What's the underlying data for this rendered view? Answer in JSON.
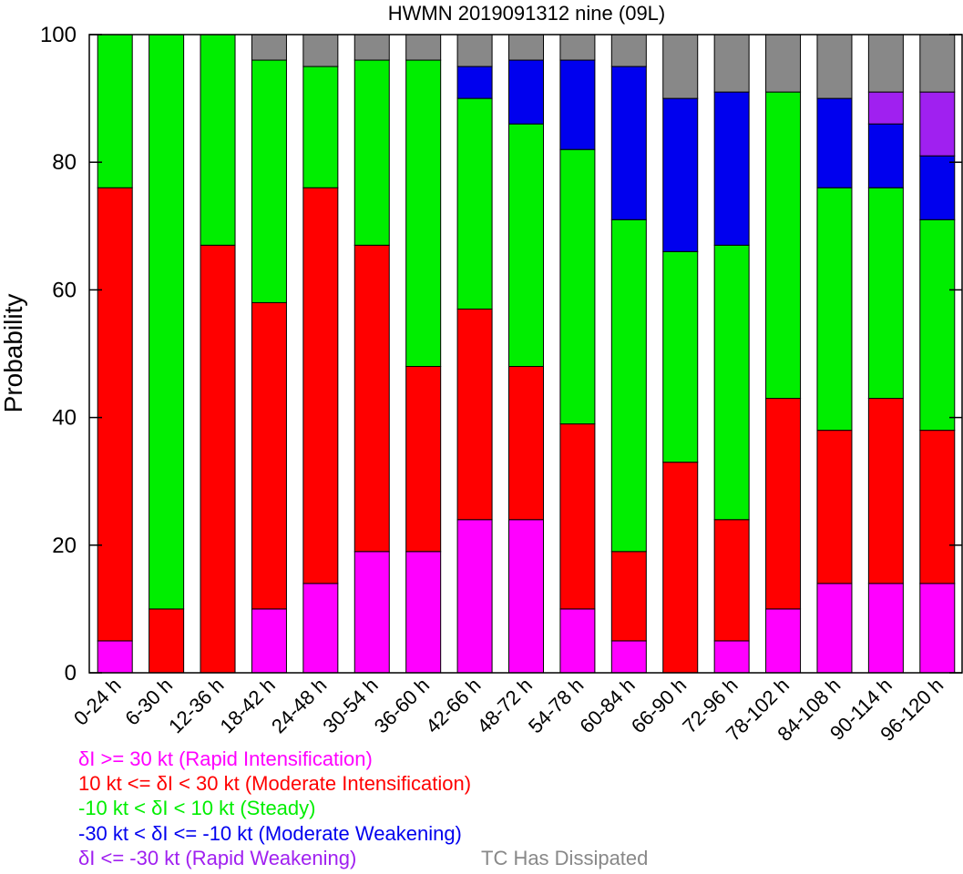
{
  "chart_data": {
    "type": "bar",
    "stacked": true,
    "title": "HWMN 2019091312 nine (09L)",
    "xlabel": "",
    "ylabel": "Probability",
    "ylim": [
      0,
      100
    ],
    "yticks": [
      0,
      20,
      40,
      60,
      80,
      100
    ],
    "grid": false,
    "categories": [
      "0-24 h",
      "6-30 h",
      "12-36 h",
      "18-42 h",
      "24-48 h",
      "30-54 h",
      "36-60 h",
      "42-66 h",
      "48-72 h",
      "54-78 h",
      "60-84 h",
      "66-90 h",
      "72-96 h",
      "78-102 h",
      "84-108 h",
      "90-114 h",
      "96-120 h"
    ],
    "series": [
      {
        "name": "δI >= 30 kt (Rapid Intensification)",
        "color": "#ff00ff",
        "values": [
          5,
          0,
          0,
          10,
          14,
          19,
          19,
          24,
          24,
          10,
          5,
          0,
          5,
          10,
          14,
          14,
          14
        ]
      },
      {
        "name": "10 kt <= δI < 30 kt (Moderate Intensification)",
        "color": "#ff0000",
        "values": [
          71,
          10,
          67,
          48,
          62,
          48,
          29,
          33,
          24,
          29,
          14,
          33,
          19,
          33,
          24,
          29,
          24
        ]
      },
      {
        "name": "-10 kt < δI < 10 kt (Steady)",
        "color": "#00ee00",
        "values": [
          24,
          90,
          33,
          38,
          19,
          29,
          48,
          33,
          38,
          43,
          52,
          33,
          43,
          48,
          38,
          33,
          33
        ]
      },
      {
        "name": "-30 kt < δI <= -10 kt (Moderate Weakening)",
        "color": "#0000ee",
        "values": [
          0,
          0,
          0,
          0,
          0,
          0,
          0,
          5,
          10,
          14,
          24,
          24,
          24,
          0,
          14,
          10,
          10
        ]
      },
      {
        "name": "δI <= -30 kt (Rapid Weakening)",
        "color": "#a020f0",
        "values": [
          0,
          0,
          0,
          0,
          0,
          0,
          0,
          0,
          0,
          0,
          0,
          0,
          0,
          0,
          0,
          5,
          10
        ]
      },
      {
        "name": "TC Has Dissipated",
        "color": "#888888",
        "values": [
          0,
          0,
          0,
          4,
          5,
          4,
          4,
          5,
          4,
          4,
          5,
          10,
          9,
          9,
          10,
          9,
          9
        ]
      }
    ],
    "legend_position": "bottom"
  },
  "legend": [
    {
      "text": "δI >= 30 kt (Rapid Intensification)",
      "color": "#ff00ff"
    },
    {
      "text": "10 kt <= δI < 30 kt (Moderate Intensification)",
      "color": "#ff0000"
    },
    {
      "text": "-10 kt < δI < 10 kt (Steady)",
      "color": "#00ee00"
    },
    {
      "text": "-30 kt < δI <= -10 kt (Moderate Weakening)",
      "color": "#0000ee"
    },
    {
      "text": "δI <= -30 kt (Rapid Weakening)",
      "color": "#a020f0"
    }
  ],
  "legend_dissipated": {
    "text": "TC Has Dissipated",
    "color": "#888888"
  }
}
